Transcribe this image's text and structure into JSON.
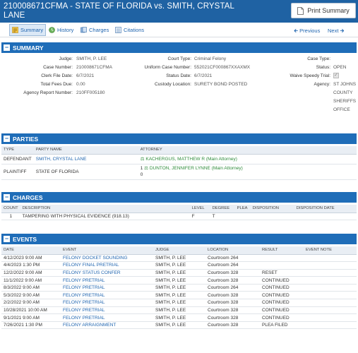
{
  "header": {
    "title": "210008671CFMA - STATE OF FLORIDA vs. SMITH, CRYSTAL LANE",
    "print_label": "Print Summary"
  },
  "nav": {
    "tabs": [
      {
        "label": "Summary",
        "icon": "summary-icon"
      },
      {
        "label": "History",
        "icon": "history-icon"
      },
      {
        "label": "Charges",
        "icon": "charges-icon"
      },
      {
        "label": "Citations",
        "icon": "citations-icon"
      }
    ],
    "previous_label": "Previous",
    "next_label": "Next"
  },
  "summary": {
    "title": "SUMMARY",
    "col1": [
      {
        "label": "Judge:",
        "value": "SMITH, P. LEE"
      },
      {
        "label": "Case Number:",
        "value": "210008671CFMA"
      },
      {
        "label": "Clerk File Date:",
        "value": "6/7/2021"
      },
      {
        "label": "Total Fees Due:",
        "value": "0.00"
      },
      {
        "label": "Agency Report Number:",
        "value": "210FF005180"
      }
    ],
    "col2": [
      {
        "label": "Court Type:",
        "value": "Criminal Felony"
      },
      {
        "label": "Uniform Case Number:",
        "value": "552021CF000867XXAXMX"
      },
      {
        "label": "Status Date:",
        "value": "6/7/2021"
      },
      {
        "label": "Custody Location:",
        "value": "SURETY BOND POSTED"
      }
    ],
    "col3": {
      "case_type_label": "Case Type:",
      "case_type_value": "",
      "status_label": "Status:",
      "status_value": "OPEN",
      "waive_label": "Waive Speedy Trial:",
      "agency_label": "Agency:",
      "agency_lines": [
        "ST JOHNS",
        "COUNTY",
        "SHERIFFS",
        "OFFICE"
      ]
    }
  },
  "parties": {
    "title": "PARTIES",
    "headers": [
      "TYPE",
      "PARTY NAME",
      "ATTORNEY"
    ],
    "rows": [
      {
        "type": "DEFENDANT",
        "name": "SMITH, CRYSTAL LANE",
        "prefix": "",
        "attorney": "KACHERGUS, MATTHEW R (Main Attorney)",
        "extra": ""
      },
      {
        "type": "PLAINTIFF",
        "name": "STATE OF FLORIDA",
        "prefix": "1",
        "attorney": "DUNTON, JENNIFER LYNNE (Main Attorney)",
        "extra": "0"
      }
    ]
  },
  "charges": {
    "title": "CHARGES",
    "headers": [
      "COUNT",
      "DESCRIPTION",
      "LEVEL",
      "DEGREE",
      "PLEA",
      "DISPOSITION",
      "DISPOSITION DATE"
    ],
    "rows": [
      {
        "count": "1",
        "description": "TAMPERING WITH PHYSICAL EVIDENCE (918.13)",
        "level": "F",
        "degree": "T",
        "plea": "",
        "disposition": "",
        "disposition_date": ""
      }
    ]
  },
  "events": {
    "title": "EVENTS",
    "headers": [
      "DATE",
      "EVENT",
      "JUDGE",
      "LOCATION",
      "RESULT",
      "EVENT NOTE"
    ],
    "rows": [
      {
        "date": "4/12/2023 9:00 AM",
        "event": "FELONY DOCKET SOUNDING",
        "judge": "SMITH, P. LEE",
        "location": "Courtroom 264",
        "result": ""
      },
      {
        "date": "4/4/2023 1:30 PM",
        "event": "FELONY FINAL PRETRIAL",
        "judge": "SMITH, P. LEE",
        "location": "Courtroom 264",
        "result": ""
      },
      {
        "date": "12/2/2022 9:00 AM",
        "event": "FELONY STATUS CONFER",
        "judge": "SMITH, P. LEE",
        "location": "Courtroom 328",
        "result": "RESET"
      },
      {
        "date": "11/1/2022 9:00 AM",
        "event": "FELONY PRETRIAL",
        "judge": "SMITH, P. LEE",
        "location": "Courtroom 328",
        "result": "CONTINUED"
      },
      {
        "date": "8/3/2022 9:00 AM",
        "event": "FELONY PRETRIAL",
        "judge": "SMITH, P. LEE",
        "location": "Courtroom 264",
        "result": "CONTINUED"
      },
      {
        "date": "5/3/2022 9:00 AM",
        "event": "FELONY PRETRIAL",
        "judge": "SMITH, P. LEE",
        "location": "Courtroom 328",
        "result": "CONTINUED"
      },
      {
        "date": "2/2/2022 9:00 AM",
        "event": "FELONY PRETRIAL",
        "judge": "SMITH, P. LEE",
        "location": "Courtroom 328",
        "result": "CONTINUED"
      },
      {
        "date": "10/28/2021 10:00 AM",
        "event": "FELONY PRETRIAL",
        "judge": "SMITH, P. LEE",
        "location": "Courtroom 328",
        "result": "CONTINUED"
      },
      {
        "date": "9/1/2021 9:00 AM",
        "event": "FELONY PRETRIAL",
        "judge": "SMITH, P. LEE",
        "location": "Courtroom 328",
        "result": "CONTINUED"
      },
      {
        "date": "7/26/2021 1:30 PM",
        "event": "FELONY ARRAIGNMENT",
        "judge": "SMITH, P. LEE",
        "location": "Courtroom 328",
        "result": "PLEA FILED"
      }
    ]
  },
  "colors": {
    "header_bg": "#1f62a3",
    "section_bg": "#1f6db8",
    "link": "#2166b0",
    "attorney": "#2e8b3a"
  }
}
